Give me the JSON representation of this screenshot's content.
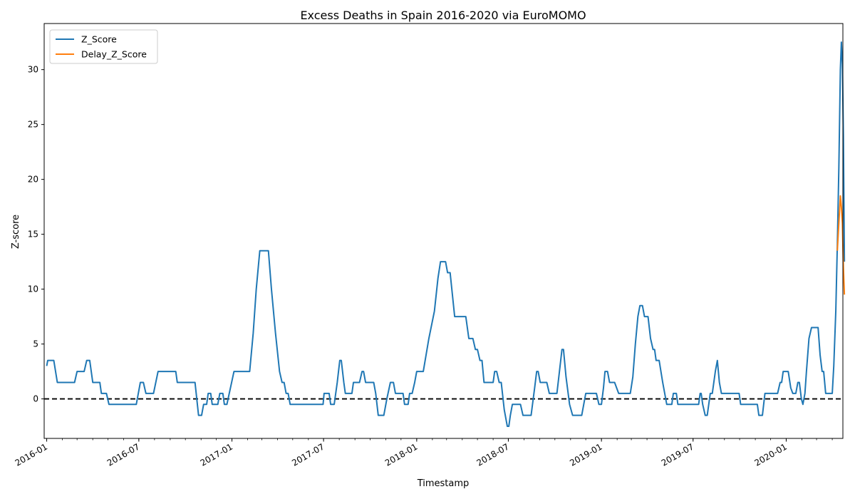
{
  "chart_data": {
    "type": "line",
    "title": "Excess Deaths in Spain 2016-2020 via EuroMOMO",
    "xlabel": "Timestamp",
    "ylabel": "Z-score",
    "xlim": [
      "2015-12-27",
      "2020-04-22"
    ],
    "ylim": [
      -3.6,
      34.2
    ],
    "x_ticks": [
      "2016-01-01",
      "2016-07-01",
      "2017-01-01",
      "2017-07-01",
      "2018-01-01",
      "2018-07-01",
      "2019-01-01",
      "2019-07-01",
      "2020-01-01"
    ],
    "x_tick_labels": [
      "2016-01",
      "2016-07",
      "2017-01",
      "2017-07",
      "2018-01",
      "2018-07",
      "2019-01",
      "2019-07",
      "2020-01"
    ],
    "y_ticks": [
      0,
      5,
      10,
      15,
      20,
      25,
      30
    ],
    "y_tick_labels": [
      "0",
      "5",
      "10",
      "15",
      "20",
      "25",
      "30"
    ],
    "legend_position": "top-left",
    "reference_line": {
      "y": 0,
      "style": "dashed",
      "color": "#000000"
    },
    "series": [
      {
        "name": "Z_Score",
        "color": "#1f77b4",
        "points": [
          [
            "2016-01-01",
            3.0
          ],
          [
            "2016-01-03",
            3.5
          ],
          [
            "2016-01-15",
            3.5
          ],
          [
            "2016-01-22",
            1.5
          ],
          [
            "2016-02-25",
            1.5
          ],
          [
            "2016-03-01",
            2.5
          ],
          [
            "2016-03-15",
            2.5
          ],
          [
            "2016-03-20",
            3.5
          ],
          [
            "2016-03-26",
            3.5
          ],
          [
            "2016-04-01",
            1.5
          ],
          [
            "2016-04-15",
            1.5
          ],
          [
            "2016-04-18",
            0.5
          ],
          [
            "2016-04-28",
            0.5
          ],
          [
            "2016-05-03",
            -0.5
          ],
          [
            "2016-06-26",
            -0.5
          ],
          [
            "2016-07-04",
            1.5
          ],
          [
            "2016-07-10",
            1.5
          ],
          [
            "2016-07-15",
            0.5
          ],
          [
            "2016-07-30",
            0.5
          ],
          [
            "2016-08-08",
            2.5
          ],
          [
            "2016-09-12",
            2.5
          ],
          [
            "2016-09-15",
            1.5
          ],
          [
            "2016-10-20",
            1.5
          ],
          [
            "2016-10-27",
            -1.5
          ],
          [
            "2016-11-02",
            -1.5
          ],
          [
            "2016-11-06",
            -0.5
          ],
          [
            "2016-11-12",
            -0.5
          ],
          [
            "2016-11-15",
            0.5
          ],
          [
            "2016-11-20",
            0.5
          ],
          [
            "2016-11-23",
            -0.5
          ],
          [
            "2016-12-04",
            -0.5
          ],
          [
            "2016-12-08",
            0.5
          ],
          [
            "2016-12-14",
            0.5
          ],
          [
            "2016-12-17",
            -0.5
          ],
          [
            "2016-12-22",
            -0.5
          ],
          [
            "2017-01-05",
            2.5
          ],
          [
            "2017-02-05",
            2.5
          ],
          [
            "2017-02-12",
            6.0
          ],
          [
            "2017-02-18",
            10.0
          ],
          [
            "2017-02-25",
            13.5
          ],
          [
            "2017-03-14",
            13.5
          ],
          [
            "2017-03-20",
            10.0
          ],
          [
            "2017-03-28",
            6.0
          ],
          [
            "2017-04-05",
            2.5
          ],
          [
            "2017-04-10",
            1.5
          ],
          [
            "2017-04-14",
            1.5
          ],
          [
            "2017-04-18",
            0.5
          ],
          [
            "2017-04-22",
            0.5
          ],
          [
            "2017-04-26",
            -0.5
          ],
          [
            "2017-06-30",
            -0.5
          ],
          [
            "2017-07-02",
            0.5
          ],
          [
            "2017-07-12",
            0.5
          ],
          [
            "2017-07-15",
            -0.5
          ],
          [
            "2017-07-22",
            -0.5
          ],
          [
            "2017-07-28",
            1.5
          ],
          [
            "2017-08-02",
            3.5
          ],
          [
            "2017-08-05",
            3.5
          ],
          [
            "2017-08-10",
            1.5
          ],
          [
            "2017-08-13",
            0.5
          ],
          [
            "2017-08-26",
            0.5
          ],
          [
            "2017-08-29",
            1.5
          ],
          [
            "2017-09-10",
            1.5
          ],
          [
            "2017-09-15",
            2.5
          ],
          [
            "2017-09-18",
            2.5
          ],
          [
            "2017-09-22",
            1.5
          ],
          [
            "2017-10-08",
            1.5
          ],
          [
            "2017-10-12",
            0.5
          ],
          [
            "2017-10-17",
            -1.5
          ],
          [
            "2017-10-28",
            -1.5
          ],
          [
            "2017-11-03",
            0.0
          ],
          [
            "2017-11-10",
            1.5
          ],
          [
            "2017-11-16",
            1.5
          ],
          [
            "2017-11-20",
            0.5
          ],
          [
            "2017-12-05",
            0.5
          ],
          [
            "2017-12-08",
            -0.5
          ],
          [
            "2017-12-15",
            -0.5
          ],
          [
            "2017-12-18",
            0.5
          ],
          [
            "2017-12-23",
            0.5
          ],
          [
            "2017-12-28",
            1.5
          ],
          [
            "2018-01-01",
            2.5
          ],
          [
            "2018-01-14",
            2.5
          ],
          [
            "2018-01-25",
            5.5
          ],
          [
            "2018-02-05",
            8.0
          ],
          [
            "2018-02-12",
            11.0
          ],
          [
            "2018-02-17",
            12.5
          ],
          [
            "2018-02-27",
            12.5
          ],
          [
            "2018-03-03",
            11.5
          ],
          [
            "2018-03-08",
            11.5
          ],
          [
            "2018-03-17",
            7.5
          ],
          [
            "2018-04-08",
            7.5
          ],
          [
            "2018-04-14",
            5.5
          ],
          [
            "2018-04-22",
            5.5
          ],
          [
            "2018-04-27",
            4.5
          ],
          [
            "2018-05-01",
            4.5
          ],
          [
            "2018-05-06",
            3.5
          ],
          [
            "2018-05-10",
            3.5
          ],
          [
            "2018-05-14",
            1.5
          ],
          [
            "2018-06-01",
            1.5
          ],
          [
            "2018-06-04",
            2.5
          ],
          [
            "2018-06-08",
            2.5
          ],
          [
            "2018-06-13",
            1.5
          ],
          [
            "2018-06-17",
            1.5
          ],
          [
            "2018-06-23",
            -1.0
          ],
          [
            "2018-06-29",
            -2.5
          ],
          [
            "2018-07-02",
            -2.5
          ],
          [
            "2018-07-05",
            -1.5
          ],
          [
            "2018-07-09",
            -0.5
          ],
          [
            "2018-07-25",
            -0.5
          ],
          [
            "2018-07-30",
            -1.5
          ],
          [
            "2018-08-15",
            -1.5
          ],
          [
            "2018-08-22",
            1.0
          ],
          [
            "2018-08-26",
            2.5
          ],
          [
            "2018-08-29",
            2.5
          ],
          [
            "2018-09-02",
            1.5
          ],
          [
            "2018-09-15",
            1.5
          ],
          [
            "2018-09-20",
            0.5
          ],
          [
            "2018-10-05",
            0.5
          ],
          [
            "2018-10-10",
            2.5
          ],
          [
            "2018-10-15",
            4.5
          ],
          [
            "2018-10-18",
            4.5
          ],
          [
            "2018-10-23",
            2.0
          ],
          [
            "2018-10-30",
            -0.5
          ],
          [
            "2018-11-05",
            -1.5
          ],
          [
            "2018-11-23",
            -1.5
          ],
          [
            "2018-11-27",
            -0.5
          ],
          [
            "2018-12-01",
            0.5
          ],
          [
            "2018-12-22",
            0.5
          ],
          [
            "2018-12-27",
            -0.5
          ],
          [
            "2019-01-01",
            -0.5
          ],
          [
            "2019-01-05",
            1.0
          ],
          [
            "2019-01-08",
            2.5
          ],
          [
            "2019-01-13",
            2.5
          ],
          [
            "2019-01-17",
            1.5
          ],
          [
            "2019-01-27",
            1.5
          ],
          [
            "2019-02-04",
            0.5
          ],
          [
            "2019-02-27",
            0.5
          ],
          [
            "2019-03-04",
            2.0
          ],
          [
            "2019-03-09",
            5.0
          ],
          [
            "2019-03-14",
            7.5
          ],
          [
            "2019-03-18",
            8.5
          ],
          [
            "2019-03-23",
            8.5
          ],
          [
            "2019-03-27",
            7.5
          ],
          [
            "2019-04-03",
            7.5
          ],
          [
            "2019-04-08",
            5.5
          ],
          [
            "2019-04-13",
            4.5
          ],
          [
            "2019-04-16",
            4.5
          ],
          [
            "2019-04-19",
            3.5
          ],
          [
            "2019-04-25",
            3.5
          ],
          [
            "2019-05-02",
            1.5
          ],
          [
            "2019-05-06",
            0.5
          ],
          [
            "2019-05-10",
            -0.5
          ],
          [
            "2019-05-20",
            -0.5
          ],
          [
            "2019-05-23",
            0.5
          ],
          [
            "2019-05-29",
            0.5
          ],
          [
            "2019-06-01",
            -0.5
          ],
          [
            "2019-07-12",
            -0.5
          ],
          [
            "2019-07-15",
            0.5
          ],
          [
            "2019-07-17",
            0.5
          ],
          [
            "2019-07-20",
            -0.5
          ],
          [
            "2019-07-25",
            -1.5
          ],
          [
            "2019-07-29",
            -1.5
          ],
          [
            "2019-08-04",
            0.5
          ],
          [
            "2019-08-08",
            0.5
          ],
          [
            "2019-08-14",
            2.5
          ],
          [
            "2019-08-18",
            3.5
          ],
          [
            "2019-08-22",
            1.5
          ],
          [
            "2019-08-26",
            0.5
          ],
          [
            "2019-09-30",
            0.5
          ],
          [
            "2019-10-03",
            -0.5
          ],
          [
            "2019-11-05",
            -0.5
          ],
          [
            "2019-11-08",
            -1.5
          ],
          [
            "2019-11-15",
            -1.5
          ],
          [
            "2019-11-20",
            0.5
          ],
          [
            "2019-12-15",
            0.5
          ],
          [
            "2019-12-20",
            1.5
          ],
          [
            "2019-12-23",
            1.5
          ],
          [
            "2019-12-26",
            2.5
          ],
          [
            "2020-01-05",
            2.5
          ],
          [
            "2020-01-10",
            1.0
          ],
          [
            "2020-01-14",
            0.5
          ],
          [
            "2020-01-20",
            0.5
          ],
          [
            "2020-01-24",
            1.5
          ],
          [
            "2020-01-27",
            1.5
          ],
          [
            "2020-01-31",
            0.0
          ],
          [
            "2020-02-03",
            -0.5
          ],
          [
            "2020-02-07",
            0.5
          ],
          [
            "2020-02-10",
            2.5
          ],
          [
            "2020-02-15",
            5.5
          ],
          [
            "2020-02-20",
            6.5
          ],
          [
            "2020-03-04",
            6.5
          ],
          [
            "2020-03-08",
            4.0
          ],
          [
            "2020-03-12",
            2.5
          ],
          [
            "2020-03-15",
            2.5
          ],
          [
            "2020-03-19",
            0.5
          ],
          [
            "2020-04-01",
            0.5
          ],
          [
            "2020-04-04",
            3.0
          ],
          [
            "2020-04-08",
            8.0
          ],
          [
            "2020-04-11",
            14.0
          ],
          [
            "2020-04-14",
            21.0
          ],
          [
            "2020-04-17",
            30.0
          ],
          [
            "2020-04-19",
            32.5
          ],
          [
            "2020-04-21",
            30.5
          ],
          [
            "2020-04-23",
            24.0
          ],
          [
            "2020-04-25",
            12.5
          ]
        ]
      },
      {
        "name": "Delay_Z_Score",
        "color": "#ff7f0e",
        "points": [
          [
            "2020-04-11",
            13.5
          ],
          [
            "2020-04-14",
            16.0
          ],
          [
            "2020-04-17",
            18.5
          ],
          [
            "2020-04-19",
            17.5
          ],
          [
            "2020-04-21",
            16.0
          ],
          [
            "2020-04-23",
            12.0
          ],
          [
            "2020-04-25",
            9.5
          ]
        ]
      }
    ]
  }
}
